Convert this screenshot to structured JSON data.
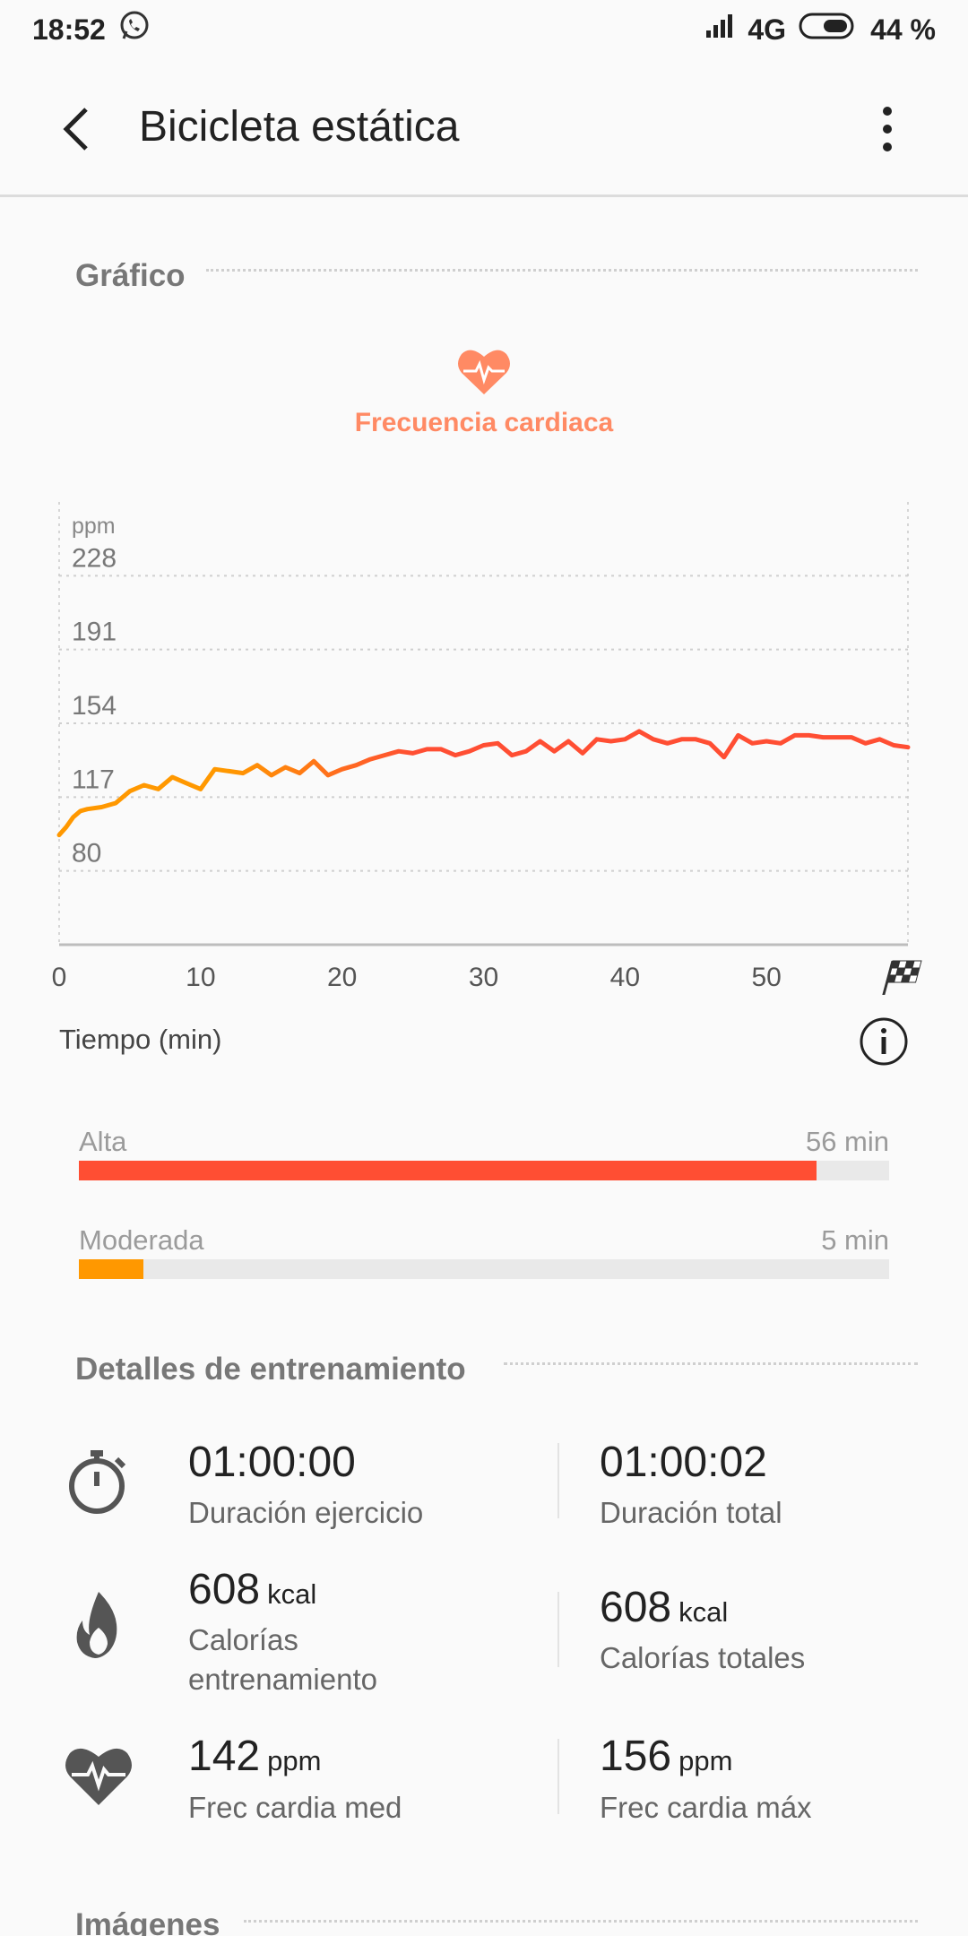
{
  "status": {
    "time": "18:52",
    "network": "4G",
    "battery": "44 %"
  },
  "toolbar": {
    "title": "Bicicleta estática"
  },
  "chart_section": {
    "title": "Gráfico",
    "metric_label": "Frecuencia cardiaca"
  },
  "chart_data": {
    "type": "line",
    "ylabel": "ppm",
    "xlabel": "Tiempo (min)",
    "y_ticks": [
      "228",
      "191",
      "154",
      "117",
      "80"
    ],
    "x_ticks": [
      "0",
      "10",
      "20",
      "30",
      "40",
      "50"
    ],
    "ylim": [
      43,
      265
    ],
    "xlim": [
      0,
      60
    ],
    "series": [
      {
        "values": [
          [
            0,
            98
          ],
          [
            0.5,
            102
          ],
          [
            1,
            107
          ],
          [
            1.5,
            110
          ],
          [
            2,
            111
          ],
          [
            3,
            112
          ],
          [
            4,
            114
          ],
          [
            5,
            120
          ],
          [
            6,
            123
          ],
          [
            7,
            121
          ],
          [
            8,
            127
          ],
          [
            9,
            124
          ],
          [
            10,
            121
          ],
          [
            11,
            131
          ],
          [
            12,
            130
          ],
          [
            13,
            129
          ],
          [
            14,
            133
          ],
          [
            15,
            128
          ],
          [
            16,
            132
          ],
          [
            17,
            129
          ],
          [
            18,
            135
          ],
          [
            19,
            128
          ],
          [
            20,
            131
          ],
          [
            21,
            133
          ],
          [
            22,
            136
          ],
          [
            23,
            138
          ],
          [
            24,
            140
          ],
          [
            25,
            139
          ],
          [
            26,
            141
          ],
          [
            27,
            141
          ],
          [
            28,
            138
          ],
          [
            29,
            140
          ],
          [
            30,
            143
          ],
          [
            31,
            144
          ],
          [
            32,
            138
          ],
          [
            33,
            140
          ],
          [
            34,
            145
          ],
          [
            35,
            140
          ],
          [
            36,
            145
          ],
          [
            37,
            139
          ],
          [
            38,
            146
          ],
          [
            39,
            145
          ],
          [
            40,
            146
          ],
          [
            41,
            150
          ],
          [
            42,
            146
          ],
          [
            43,
            144
          ],
          [
            44,
            146
          ],
          [
            45,
            146
          ],
          [
            46,
            144
          ],
          [
            47,
            137
          ],
          [
            48,
            148
          ],
          [
            49,
            144
          ],
          [
            50,
            145
          ],
          [
            51,
            144
          ],
          [
            52,
            148
          ],
          [
            53,
            148
          ],
          [
            54,
            147
          ],
          [
            55,
            147
          ],
          [
            56,
            147
          ],
          [
            57,
            144
          ],
          [
            58,
            146
          ],
          [
            59,
            143
          ],
          [
            60,
            142
          ]
        ]
      }
    ]
  },
  "zones": [
    {
      "label": "Alta",
      "value": "56 min",
      "fraction": 0.91,
      "color": "#ff4e33"
    },
    {
      "label": "Moderada",
      "value": "5 min",
      "fraction": 0.08,
      "color": "#ff9800"
    }
  ],
  "details": {
    "title": "Detalles de entrenamiento",
    "exercise_duration": "01:00:00",
    "exercise_duration_label": "Duración ejercicio",
    "total_duration": "01:00:02",
    "total_duration_label": "Duración total",
    "training_calories": "608",
    "training_calories_unit": "kcal",
    "training_calories_label_1": "Calorías",
    "training_calories_label_2": "entrenamiento",
    "total_calories": "608",
    "total_calories_unit": "kcal",
    "total_calories_label": "Calorías totales",
    "avg_hr": "142",
    "avg_hr_unit": "ppm",
    "avg_hr_label": "Frec cardia med",
    "max_hr": "156",
    "max_hr_unit": "ppm",
    "max_hr_label": "Frec cardia máx"
  },
  "images_section": {
    "title": "Imágenes"
  },
  "colors": {
    "accent": "#ff8a64",
    "high_zone": "#ff4e33",
    "moderate_zone": "#ff9800"
  }
}
